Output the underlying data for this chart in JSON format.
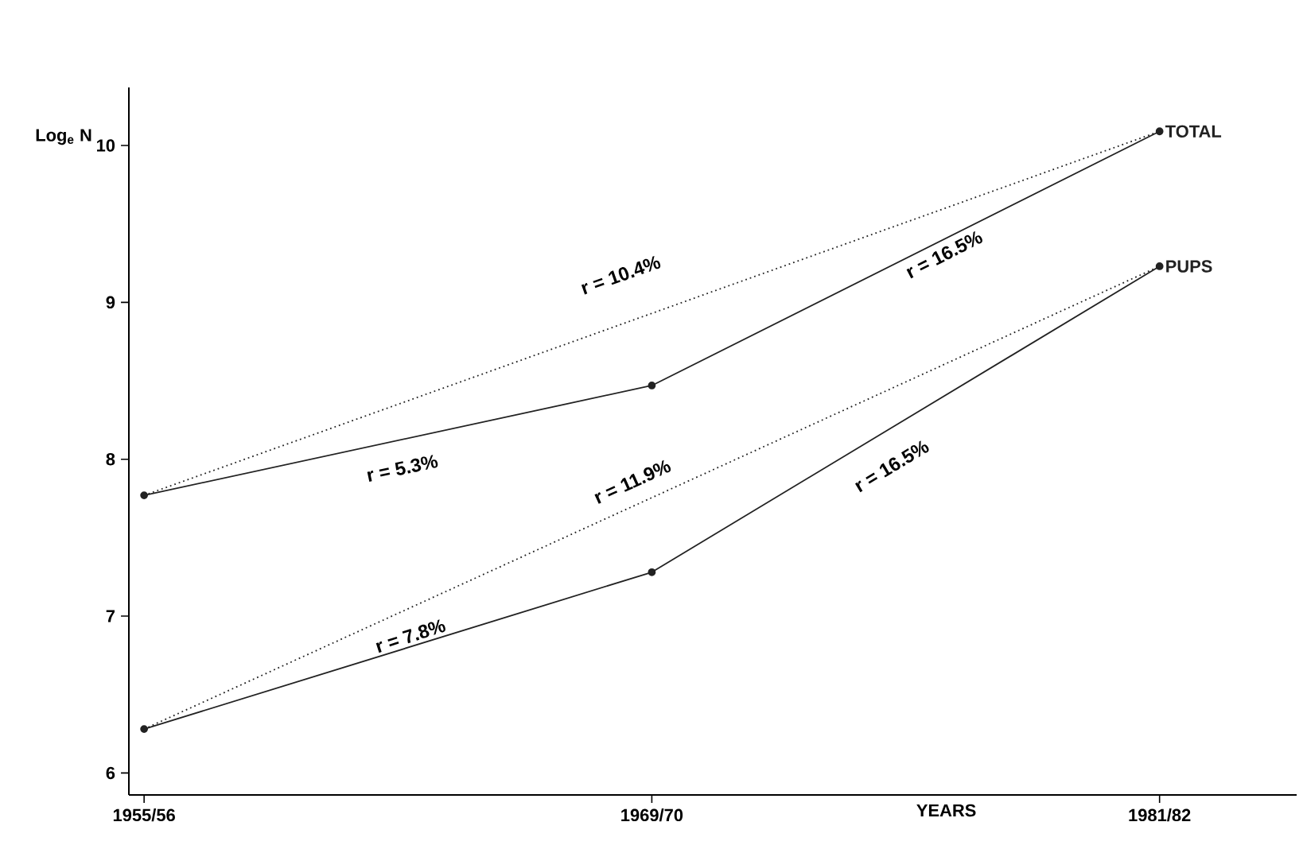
{
  "chart_data": {
    "type": "line",
    "xlabel": "YEARS",
    "ylabel": "Log$_{e}$ N",
    "categories": [
      "1955/56",
      "1969/70",
      "1981/82"
    ],
    "ylim": [
      5.86,
      10.37
    ],
    "yticks": [
      6,
      7,
      8,
      9,
      10
    ],
    "series": [
      {
        "name": "TOTAL",
        "color": "#222222",
        "values": [
          7.77,
          8.47,
          10.09
        ],
        "marker": "circle",
        "line_style": "solid"
      },
      {
        "color": "#222222",
        "x": [
          "1955/56",
          "1981/82"
        ],
        "values": [
          7.77,
          10.09
        ],
        "marker": "none",
        "line_style": "dotted"
      },
      {
        "name": "PUPS",
        "color": "#222222",
        "values": [
          6.28,
          7.28,
          9.23
        ],
        "marker": "circle",
        "line_style": "solid"
      },
      {
        "color": "#222222",
        "x": [
          "1955/56",
          "1981/82"
        ],
        "values": [
          6.28,
          9.23
        ],
        "marker": "none",
        "line_style": "dotted"
      }
    ],
    "annotations": [
      "r = 10.4%",
      "r = 5.3%",
      "r = 16.5%",
      "r = 11.9%",
      "r = 7.8%",
      "r = 16.5%"
    ],
    "grid": false
  }
}
